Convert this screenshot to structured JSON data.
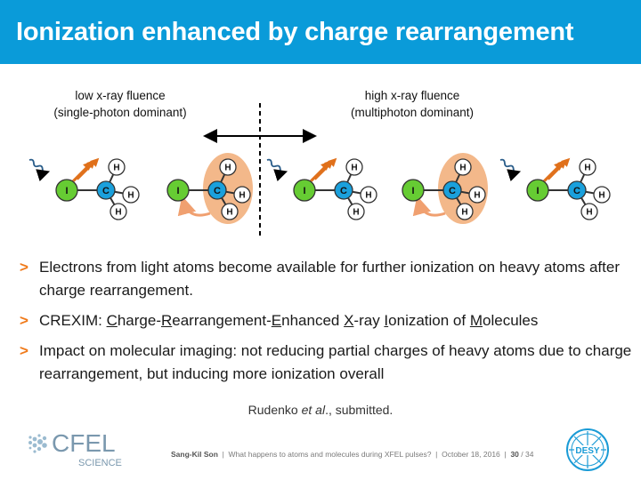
{
  "slide": {
    "title": "Ionization enhanced by charge rearrangement"
  },
  "labels": {
    "left_line1": "low x-ray fluence",
    "left_line2": "(single-photon dominant)",
    "right_line1": "high x-ray fluence",
    "right_line2": "(multiphoton dominant)"
  },
  "molecule": {
    "iodine": "I",
    "carbon": "C",
    "hydrogen": "H"
  },
  "bullets": [
    {
      "text": "Electrons from light atoms become available for further ionization on heavy atoms after charge rearrangement."
    },
    {
      "parts": [
        {
          "t": "CREXIM: ",
          "u": false
        },
        {
          "t": "C",
          "u": true
        },
        {
          "t": "harge-",
          "u": false
        },
        {
          "t": "R",
          "u": true
        },
        {
          "t": "earrangement-",
          "u": false
        },
        {
          "t": "E",
          "u": true
        },
        {
          "t": "nhanced ",
          "u": false
        },
        {
          "t": "X",
          "u": true
        },
        {
          "t": "-ray ",
          "u": false
        },
        {
          "t": "I",
          "u": true
        },
        {
          "t": "onization of ",
          "u": false
        },
        {
          "t": "M",
          "u": true
        },
        {
          "t": "olecules",
          "u": false
        }
      ]
    },
    {
      "text": "Impact on molecular imaging: not reducing partial charges of heavy atoms due to charge rearrangement, but inducing more ionization overall"
    }
  ],
  "bullet_marker": ">",
  "citation": {
    "author": "Rudenko ",
    "etal": "et al",
    "rest": "., submitted."
  },
  "footer": {
    "speaker": "Sang-Kil Son",
    "talk": "  |  What happens to atoms and molecules during XFEL pulses?  |  October 18, 2016  |  ",
    "page": "30",
    "total": " / 34"
  },
  "logos": {
    "cfel_text": "CFEL",
    "cfel_sub": "SCIENCE",
    "desy_text": "DESY"
  },
  "colors": {
    "title_bar": "#0a9bd9",
    "accent": "#f07a1a",
    "iodine": "#66cc33",
    "carbon": "#1aa0dc",
    "hydrogen": "#ffffff",
    "charge_cloud": "#f3b88a",
    "xray": "#2a5d8a"
  }
}
